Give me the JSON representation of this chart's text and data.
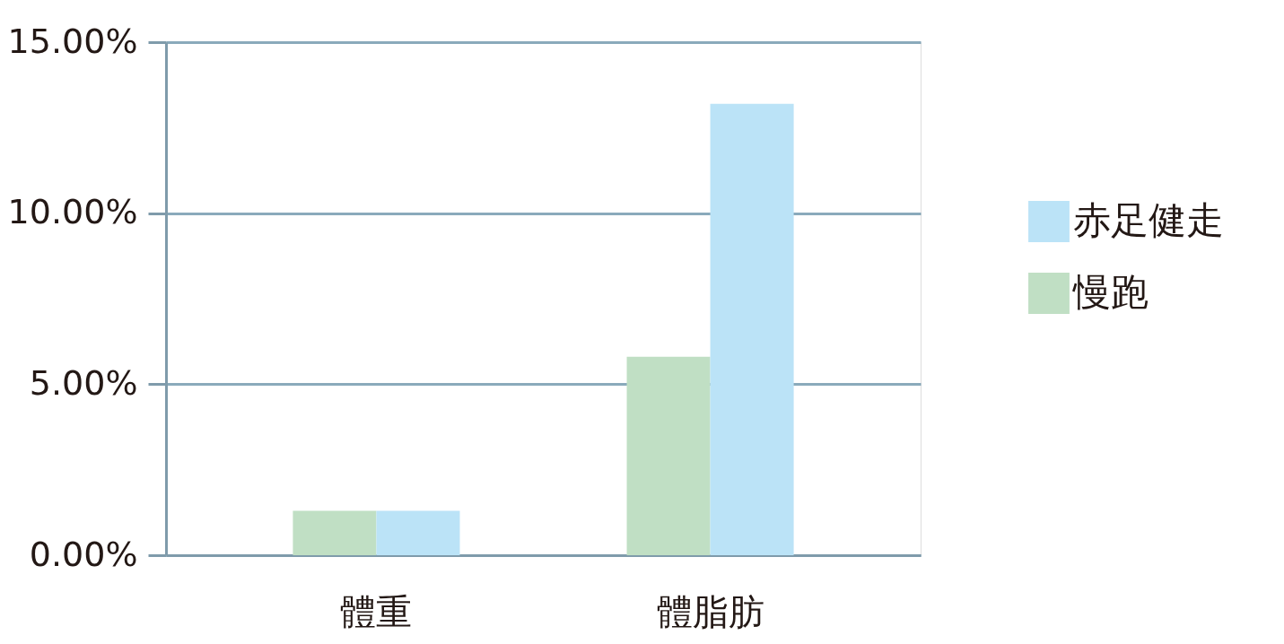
{
  "chart_data": {
    "type": "bar",
    "categories": [
      "體重",
      "體脂肪"
    ],
    "series": [
      {
        "name": "慢跑",
        "color": "#c0dfc4",
        "values": [
          1.3,
          5.8
        ]
      },
      {
        "name": "赤足健走",
        "color": "#bbe3f7",
        "values": [
          1.3,
          13.2
        ]
      }
    ],
    "ylim": [
      0,
      15
    ],
    "yticks": [
      {
        "value": 0,
        "label": "0.00%"
      },
      {
        "value": 5,
        "label": "5.00%"
      },
      {
        "value": 10,
        "label": "10.00%"
      },
      {
        "value": 15,
        "label": "15.00%"
      }
    ],
    "grid": "y",
    "legend": "right"
  }
}
